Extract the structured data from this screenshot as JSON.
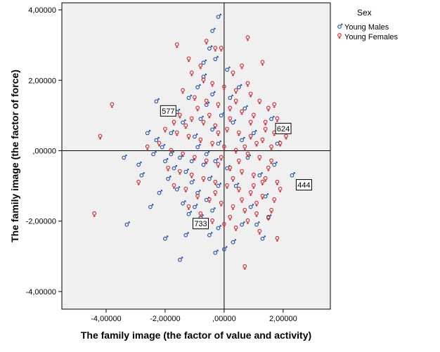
{
  "chart_data": {
    "type": "scatter",
    "xlabel": "The family image (the factor of value and activity)",
    "ylabel": "The family image (the factor of force)",
    "xlim": [
      -5.5,
      3.6
    ],
    "ylim": [
      -4.5,
      4.2
    ],
    "x_ticks": [
      -4,
      -2,
      0,
      2
    ],
    "x_tick_labels": [
      "-4,00000",
      "-2,00000",
      ",00000",
      "2,00000"
    ],
    "y_ticks": [
      4,
      2,
      0,
      -2,
      -4
    ],
    "y_tick_labels": [
      "4,00000",
      "2,00000",
      ",00000",
      "-2,00000",
      "-4,00000"
    ],
    "reference_lines": {
      "x": 0,
      "y": 0
    },
    "grid": false,
    "legend": {
      "title": "Sex",
      "position": "right-top",
      "entries": [
        "Young Males",
        "Young Females"
      ]
    },
    "colors": {
      "Young Males": "#1f4fa8",
      "Young Females": "#d42430",
      "plot_background": "#f0f0f0"
    },
    "series": [
      {
        "name": "Young Males",
        "points": [
          [
            -0.2,
            3.8
          ],
          [
            -0.4,
            3.4
          ],
          [
            -0.5,
            2.9
          ],
          [
            -0.3,
            2.6
          ],
          [
            -0.7,
            2.5
          ],
          [
            -2.3,
            1.4
          ],
          [
            -2.6,
            0.5
          ],
          [
            -1.6,
            1.1
          ],
          [
            -1.8,
            0.5
          ],
          [
            -1.2,
            1.5
          ],
          [
            -0.9,
            1.8
          ],
          [
            -1.4,
            0.8
          ],
          [
            -0.6,
            1.3
          ],
          [
            -0.8,
            0.9
          ],
          [
            -1.0,
            0.4
          ],
          [
            -2.1,
            0.1
          ],
          [
            -2.4,
            -0.1
          ],
          [
            -2.0,
            -0.3
          ],
          [
            -1.7,
            -0.5
          ],
          [
            -1.5,
            -0.2
          ],
          [
            -1.3,
            -0.6
          ],
          [
            -1.1,
            -0.9
          ],
          [
            -0.9,
            -1.2
          ],
          [
            -0.7,
            -0.4
          ],
          [
            -0.5,
            -0.8
          ],
          [
            -0.3,
            -0.3
          ],
          [
            -0.2,
            0.2
          ],
          [
            -0.4,
            0.6
          ],
          [
            -0.6,
            -0.1
          ],
          [
            -1.9,
            -0.8
          ],
          [
            -1.6,
            -1.1
          ],
          [
            -1.4,
            -1.5
          ],
          [
            -1.2,
            -1.8
          ],
          [
            -1.0,
            -1.6
          ],
          [
            -0.8,
            -1.9
          ],
          [
            -0.6,
            -1.4
          ],
          [
            -0.4,
            -1.7
          ],
          [
            -0.2,
            -2.2
          ],
          [
            -0.5,
            -2.4
          ],
          [
            -0.3,
            -2.9
          ],
          [
            -1.3,
            -2.4
          ],
          [
            -1.5,
            -3.1
          ],
          [
            -2.0,
            -2.5
          ],
          [
            -2.5,
            -1.6
          ],
          [
            -2.8,
            -0.7
          ],
          [
            -3.3,
            -2.1
          ],
          [
            -3.4,
            -0.2
          ],
          [
            -2.9,
            -0.4
          ],
          [
            -2.2,
            -1.2
          ],
          [
            0.0,
            -2.8
          ],
          [
            0.2,
            1.5
          ],
          [
            0.3,
            0.8
          ],
          [
            0.1,
            -0.5
          ],
          [
            0.4,
            -1.0
          ],
          [
            0.6,
            0.3
          ],
          [
            0.8,
            -0.2
          ],
          [
            1.0,
            0.5
          ],
          [
            1.2,
            -0.7
          ],
          [
            1.4,
            -1.3
          ],
          [
            1.6,
            0.9
          ],
          [
            0.5,
            1.8
          ],
          [
            0.7,
            1.2
          ],
          [
            0.9,
            -1.6
          ],
          [
            1.1,
            -2.1
          ],
          [
            1.3,
            -2.5
          ],
          [
            1.5,
            -1.9
          ],
          [
            1.7,
            -0.4
          ],
          [
            1.8,
            0.2
          ],
          [
            2.3,
            -0.7
          ],
          [
            0.3,
            -2.6
          ],
          [
            0.6,
            -2.1
          ],
          [
            -0.1,
            1.0
          ],
          [
            -0.2,
            -1.0
          ],
          [
            -0.9,
            0.1
          ],
          [
            -1.1,
            -0.3
          ],
          [
            -1.8,
            -0.1
          ],
          [
            -2.3,
            0.3
          ],
          [
            -0.7,
            2.1
          ],
          [
            -0.4,
            1.6
          ],
          [
            0.1,
            2.3
          ]
        ]
      },
      {
        "name": "Young Females",
        "points": [
          [
            -1.6,
            3.0
          ],
          [
            -0.6,
            3.1
          ],
          [
            -0.3,
            2.9
          ],
          [
            -0.1,
            2.9
          ],
          [
            0.8,
            3.2
          ],
          [
            -1.2,
            2.6
          ],
          [
            -0.8,
            2.4
          ],
          [
            0.3,
            2.2
          ],
          [
            0.6,
            2.4
          ],
          [
            1.3,
            2.5
          ],
          [
            -1.1,
            2.2
          ],
          [
            -0.7,
            2.0
          ],
          [
            -0.4,
            1.9
          ],
          [
            0.0,
            1.8
          ],
          [
            0.4,
            1.7
          ],
          [
            0.9,
            1.6
          ],
          [
            1.2,
            1.4
          ],
          [
            1.5,
            1.2
          ],
          [
            1.8,
            0.9
          ],
          [
            2.0,
            0.6
          ],
          [
            -1.4,
            1.7
          ],
          [
            -1.0,
            1.5
          ],
          [
            -0.6,
            1.4
          ],
          [
            -0.2,
            1.3
          ],
          [
            0.2,
            1.2
          ],
          [
            0.6,
            1.1
          ],
          [
            1.0,
            1.0
          ],
          [
            1.4,
            0.8
          ],
          [
            1.7,
            0.5
          ],
          [
            1.9,
            0.2
          ],
          [
            -1.9,
            1.2
          ],
          [
            -1.5,
            1.0
          ],
          [
            -1.1,
            0.9
          ],
          [
            -0.7,
            0.8
          ],
          [
            -0.3,
            0.7
          ],
          [
            0.1,
            0.6
          ],
          [
            0.5,
            0.5
          ],
          [
            0.9,
            0.4
          ],
          [
            1.3,
            0.3
          ],
          [
            1.6,
            0.1
          ],
          [
            -2.0,
            0.6
          ],
          [
            -1.6,
            0.5
          ],
          [
            -1.2,
            0.4
          ],
          [
            -0.8,
            0.3
          ],
          [
            -0.4,
            0.2
          ],
          [
            0.0,
            0.1
          ],
          [
            0.4,
            0.0
          ],
          [
            0.8,
            -0.1
          ],
          [
            1.2,
            -0.2
          ],
          [
            1.6,
            -0.3
          ],
          [
            -2.2,
            0.2
          ],
          [
            -1.8,
            0.0
          ],
          [
            -1.4,
            -0.1
          ],
          [
            -1.0,
            -0.2
          ],
          [
            -0.6,
            -0.3
          ],
          [
            -0.2,
            -0.4
          ],
          [
            0.2,
            -0.5
          ],
          [
            0.6,
            -0.6
          ],
          [
            1.0,
            -0.7
          ],
          [
            1.4,
            -0.8
          ],
          [
            1.8,
            -0.9
          ],
          [
            -1.9,
            -0.5
          ],
          [
            -1.5,
            -0.6
          ],
          [
            -1.1,
            -0.7
          ],
          [
            -0.7,
            -0.8
          ],
          [
            -0.3,
            -0.9
          ],
          [
            0.1,
            -1.0
          ],
          [
            0.5,
            -1.1
          ],
          [
            0.9,
            -1.2
          ],
          [
            1.3,
            -1.3
          ],
          [
            1.7,
            -1.4
          ],
          [
            -1.7,
            -1.0
          ],
          [
            -1.3,
            -1.1
          ],
          [
            -0.9,
            -1.3
          ],
          [
            -0.5,
            -1.4
          ],
          [
            -0.1,
            -1.5
          ],
          [
            0.3,
            -1.6
          ],
          [
            0.7,
            -1.7
          ],
          [
            1.1,
            -1.8
          ],
          [
            1.5,
            -1.9
          ],
          [
            -1.2,
            -1.6
          ],
          [
            -0.8,
            -1.8
          ],
          [
            -0.4,
            -2.0
          ],
          [
            0.0,
            -2.1
          ],
          [
            0.4,
            -2.2
          ],
          [
            0.8,
            -2.0
          ],
          [
            1.2,
            -2.3
          ],
          [
            1.6,
            -1.7
          ],
          [
            1.8,
            -2.5
          ],
          [
            0.7,
            -3.3
          ],
          [
            -4.4,
            -1.8
          ],
          [
            -3.8,
            1.3
          ],
          [
            -4.2,
            0.4
          ],
          [
            -2.9,
            -0.9
          ],
          [
            -2.6,
            0.1
          ],
          [
            1.9,
            -1.1
          ],
          [
            2.1,
            0.4
          ],
          [
            1.7,
            1.3
          ],
          [
            0.2,
            0.9
          ],
          [
            -0.1,
            -0.2
          ],
          [
            0.5,
            -0.3
          ],
          [
            0.9,
            0.8
          ],
          [
            1.1,
            0.2
          ],
          [
            -0.5,
            1.0
          ],
          [
            -0.9,
            1.2
          ],
          [
            0.3,
            -0.8
          ],
          [
            0.7,
            0.1
          ],
          [
            1.5,
            -0.5
          ],
          [
            -0.2,
            0.5
          ],
          [
            0.6,
            -1.4
          ],
          [
            1.0,
            -1.0
          ],
          [
            1.4,
            0.6
          ],
          [
            -1.3,
            0.7
          ],
          [
            -1.7,
            0.8
          ],
          [
            0.4,
            1.4
          ],
          [
            0.8,
            1.9
          ],
          [
            1.1,
            -1.5
          ],
          [
            1.3,
            -0.9
          ],
          [
            -0.3,
            -1.2
          ],
          [
            0.2,
            -1.9
          ]
        ]
      }
    ],
    "callouts": [
      {
        "label": "577",
        "point": [
          -2.3,
          1.4
        ]
      },
      {
        "label": "624",
        "point": [
          1.6,
          0.9
        ]
      },
      {
        "label": "444",
        "point": [
          2.3,
          -0.7
        ]
      },
      {
        "label": "733",
        "point": [
          -1.2,
          -1.8
        ]
      }
    ]
  }
}
